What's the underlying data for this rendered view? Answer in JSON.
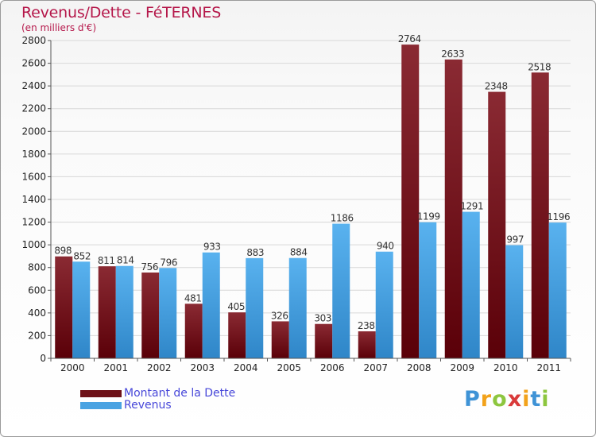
{
  "title": "Revenus/Dette - FéTERNES",
  "subtitle": "(en milliers d'€)",
  "brand": "Proxiti",
  "colors": {
    "dette": "#7a1d24",
    "revenus": "#4aa3e2",
    "title": "#b5174a",
    "legend_text": "#4747d9"
  },
  "chart_data": {
    "type": "bar",
    "title": "Revenus/Dette - FéTERNES",
    "subtitle": "(en milliers d'€)",
    "categories": [
      "2000",
      "2001",
      "2002",
      "2003",
      "2004",
      "2005",
      "2006",
      "2007",
      "2008",
      "2009",
      "2010",
      "2011"
    ],
    "series": [
      {
        "name": "Montant de la Dette",
        "values": [
          898,
          811,
          756,
          481,
          405,
          326,
          303,
          238,
          2764,
          2633,
          2348,
          2518
        ]
      },
      {
        "name": "Revenus",
        "values": [
          852,
          814,
          796,
          933,
          883,
          884,
          1186,
          940,
          1199,
          1291,
          997,
          1196
        ]
      }
    ],
    "ylim": [
      0,
      2800
    ],
    "yticks": [
      0,
      200,
      400,
      600,
      800,
      1000,
      1200,
      1400,
      1600,
      1800,
      2000,
      2200,
      2400,
      2600,
      2800
    ],
    "xlabel": "",
    "ylabel": "",
    "legend": "bottom-left"
  }
}
